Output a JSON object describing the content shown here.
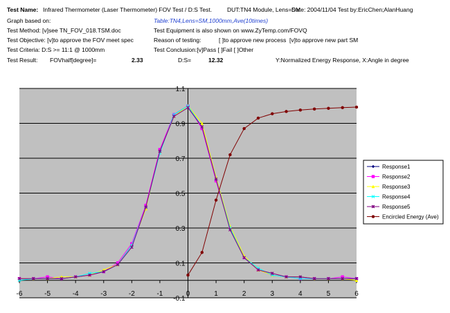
{
  "header": {
    "test_name_label": "Test Name:",
    "test_name": "Infrared Thermometer (Laser Thermometer) FOV Test / D:S Test.",
    "dut": "DUT:TN4 Module, Lens=SM",
    "date": "Date: 2004/11/04 Test by:EricChen;AlanHuang",
    "graph_based_on": "Graph based on:",
    "graph_source": "Table:TN4,Lens=SM,1000mm,Ave(10times)",
    "test_method": "Test Method: [v]see TN_FOV_018.TSM.doc",
    "equipment": "Test Equipment is also shown on  www.ZyTemp.com/FOVQ",
    "objective": "Test Objective: [v]to approve the FOV meet spec",
    "reason": "Reason of testing:",
    "reason_1": "[ ]to approve new process",
    "reason_2": "[v]to approve new part SM",
    "criteria": "Test Criteria:  D:S >= 11:1 @ 1000mm",
    "conclusion": "Test Conclusion:[v]Pass [ ]Fail [ ]Other",
    "result": "Test Result:",
    "fov_label": "FOVhalf[degree]=",
    "fov": 2.33,
    "ds_label": "D:S=",
    "ds": 12.32,
    "axes_note": "Y:Normalized Energy Response,  X:Angle in degree"
  },
  "chart_data": {
    "type": "line",
    "x": [
      -6,
      -5.5,
      -5,
      -4.5,
      -4,
      -3.5,
      -3,
      -2.5,
      -2,
      -1.5,
      -1,
      -0.5,
      0,
      0.5,
      1,
      1.5,
      2,
      2.5,
      3,
      3.5,
      4,
      4.5,
      5,
      5.5,
      6
    ],
    "xlim": [
      -6,
      6
    ],
    "xticks": [
      -6,
      -5,
      -4,
      -3,
      -2,
      -1,
      0,
      1,
      2,
      3,
      4,
      5,
      6
    ],
    "ylim": [
      -0.1,
      1.1
    ],
    "yticks": [
      -0.1,
      0.1,
      0.3,
      0.5,
      0.7,
      0.9,
      1.1
    ],
    "grid": true,
    "legend": "right",
    "series": [
      {
        "name": "Response1",
        "color": "#000080",
        "marker": "diamond",
        "values": [
          0.01,
          0.01,
          0.01,
          0.01,
          0.02,
          0.03,
          0.05,
          0.09,
          0.2,
          0.42,
          0.74,
          0.95,
          1.0,
          0.88,
          0.58,
          0.3,
          0.13,
          0.06,
          0.03,
          0.02,
          0.02,
          0.01,
          0.01,
          0.01,
          0.01
        ]
      },
      {
        "name": "Response2",
        "color": "#ff00ff",
        "marker": "square",
        "values": [
          0.01,
          0.01,
          0.02,
          0.01,
          0.02,
          0.03,
          0.05,
          0.1,
          0.21,
          0.43,
          0.75,
          0.95,
          1.0,
          0.87,
          0.57,
          0.3,
          0.13,
          0.06,
          0.03,
          0.02,
          0.01,
          0.01,
          0.01,
          0.02,
          0.01
        ]
      },
      {
        "name": "Response3",
        "color": "#ffff00",
        "marker": "triangle",
        "values": [
          0.01,
          0.01,
          0.01,
          0.02,
          0.02,
          0.03,
          0.06,
          0.09,
          0.2,
          0.41,
          0.74,
          0.94,
          1.0,
          0.9,
          0.59,
          0.31,
          0.14,
          0.06,
          0.03,
          0.02,
          0.02,
          0.01,
          0.01,
          0.01,
          0.0
        ]
      },
      {
        "name": "Response4",
        "color": "#00ffff",
        "marker": "cross",
        "values": [
          0.0,
          0.01,
          0.01,
          0.01,
          0.02,
          0.04,
          0.05,
          0.09,
          0.2,
          0.42,
          0.73,
          0.95,
          1.0,
          0.88,
          0.58,
          0.3,
          0.13,
          0.07,
          0.03,
          0.02,
          0.01,
          0.01,
          0.01,
          0.01,
          0.01
        ]
      },
      {
        "name": "Response5",
        "color": "#800080",
        "marker": "star",
        "values": [
          0.01,
          0.01,
          0.01,
          0.01,
          0.02,
          0.03,
          0.05,
          0.09,
          0.19,
          0.42,
          0.74,
          0.94,
          0.99,
          0.88,
          0.58,
          0.29,
          0.13,
          0.06,
          0.04,
          0.02,
          0.02,
          0.01,
          0.01,
          0.01,
          0.01
        ]
      },
      {
        "name": "Encircled Energy (Ave)",
        "color": "#800000",
        "marker": "circle",
        "values": [
          null,
          null,
          null,
          null,
          null,
          null,
          null,
          null,
          null,
          null,
          null,
          null,
          0.03,
          0.16,
          0.46,
          0.72,
          0.87,
          0.93,
          0.955,
          0.968,
          0.976,
          0.982,
          0.986,
          0.99,
          0.993
        ]
      }
    ]
  }
}
